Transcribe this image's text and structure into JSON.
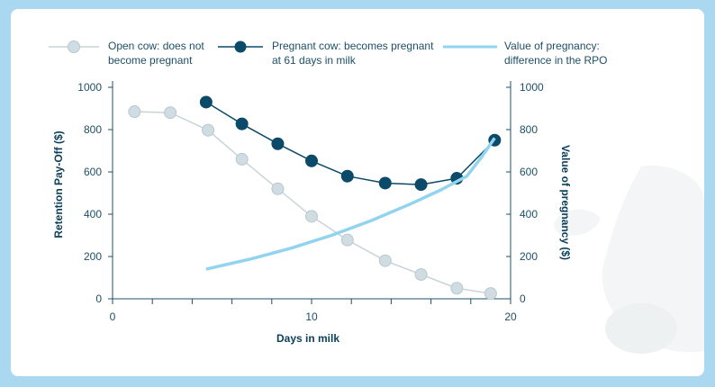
{
  "chart_data": {
    "type": "line",
    "xlabel": "Days in milk",
    "ylabel_left": "Retention Pay-Off ($)",
    "ylabel_right": "Value of pregnancy ($)",
    "xlim": [
      0,
      20
    ],
    "ylim_left": [
      0,
      1000
    ],
    "ylim_right": [
      0,
      1000
    ],
    "x_tick_labels": [
      "0",
      "10",
      "20"
    ],
    "y_tick_labels": [
      "0",
      "200",
      "400",
      "600",
      "800",
      "1000"
    ],
    "legend_position": "top",
    "grid": false,
    "colors": {
      "open": "#cfdde3",
      "open_line": "#c9d4d8",
      "pregnant": "#0b4a68",
      "value": "#92d3ef",
      "axis": "#1d4f66"
    },
    "series": [
      {
        "key": "open",
        "name": "Open cow: does not become pregnant",
        "name_lines": [
          "Open cow: does not",
          "become pregnant"
        ],
        "axis": "left",
        "x": [
          1.1,
          2.9,
          4.8,
          6.5,
          8.3,
          10.0,
          11.8,
          13.7,
          15.5,
          17.3,
          19.0
        ],
        "values": [
          885,
          880,
          797,
          660,
          520,
          390,
          278,
          180,
          115,
          50,
          25
        ]
      },
      {
        "key": "pregnant",
        "name": "Pregnant cow: becomes pregnant at 61 days in milk",
        "name_lines": [
          "Pregnant cow: becomes pregnant",
          "at 61 days in milk"
        ],
        "axis": "left",
        "x": [
          4.7,
          6.5,
          8.3,
          10.0,
          11.8,
          13.7,
          15.5,
          17.3,
          19.2
        ],
        "values": [
          930,
          827,
          733,
          652,
          580,
          547,
          540,
          570,
          750
        ]
      },
      {
        "key": "value",
        "name": "Value of pregnancy: difference in the RPO",
        "name_lines": [
          "Value of pregnancy:",
          "difference in the RPO"
        ],
        "axis": "right",
        "x": [
          4.7,
          7.0,
          9.0,
          11.0,
          13.0,
          15.0,
          16.5,
          17.8,
          18.5,
          19.2
        ],
        "values": [
          140,
          190,
          240,
          300,
          370,
          450,
          515,
          580,
          665,
          760
        ]
      }
    ]
  }
}
